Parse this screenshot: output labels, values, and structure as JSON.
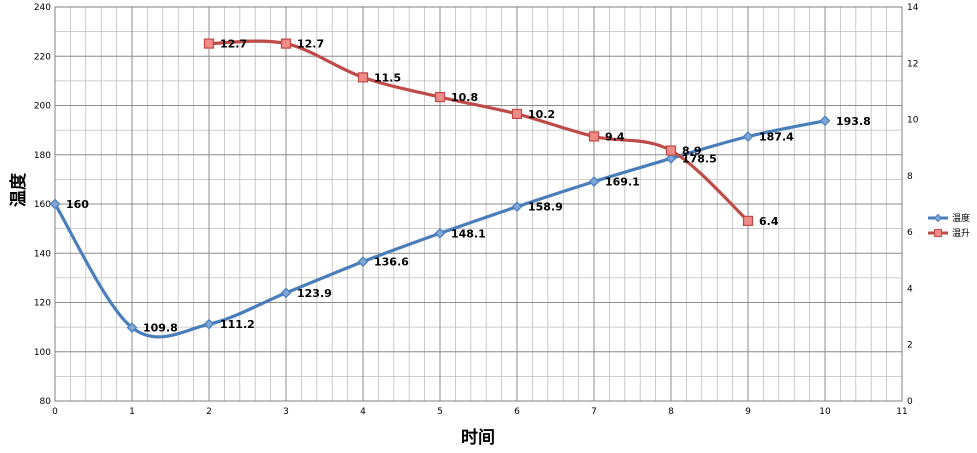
{
  "chart_data": {
    "type": "line",
    "xlabel": "时间",
    "ylabel": "温度",
    "xlim": [
      0,
      11
    ],
    "ylim": [
      80,
      240
    ],
    "y2lim": [
      0,
      14
    ],
    "x_ticks": [
      0,
      1,
      2,
      3,
      4,
      5,
      6,
      7,
      8,
      9,
      10,
      11
    ],
    "y_ticks": [
      80,
      100,
      120,
      140,
      160,
      180,
      200,
      220,
      240
    ],
    "y2_ticks": [
      0,
      2,
      4,
      6,
      8,
      10,
      12,
      14
    ],
    "grid": true,
    "smooth": true,
    "legend_position": "right",
    "series": [
      {
        "name": "温度",
        "axis": "left",
        "color": "#4a7ebb",
        "marker": "diamond",
        "x": [
          0,
          1,
          2,
          3,
          4,
          5,
          6,
          7,
          8,
          9,
          10
        ],
        "values": [
          160,
          109.8,
          111.2,
          123.9,
          136.6,
          148.1,
          158.9,
          169.1,
          178.5,
          187.4,
          193.8
        ],
        "labels": [
          "160",
          "109.8",
          "111.2",
          "123.9",
          "136.6",
          "148.1",
          "158.9",
          "169.1",
          "178.5",
          "187.4",
          "193.8"
        ]
      },
      {
        "name": "温升",
        "axis": "right",
        "color": "#be4b48",
        "marker": "square",
        "x": [
          2,
          3,
          4,
          5,
          6,
          7,
          8,
          9
        ],
        "values": [
          12.7,
          12.7,
          11.5,
          10.8,
          10.2,
          9.4,
          8.9,
          6.4
        ],
        "labels": [
          "12.7",
          "12.7",
          "11.5",
          "10.8",
          "10.2",
          "9.4",
          "8.9",
          "6.4"
        ]
      }
    ]
  }
}
